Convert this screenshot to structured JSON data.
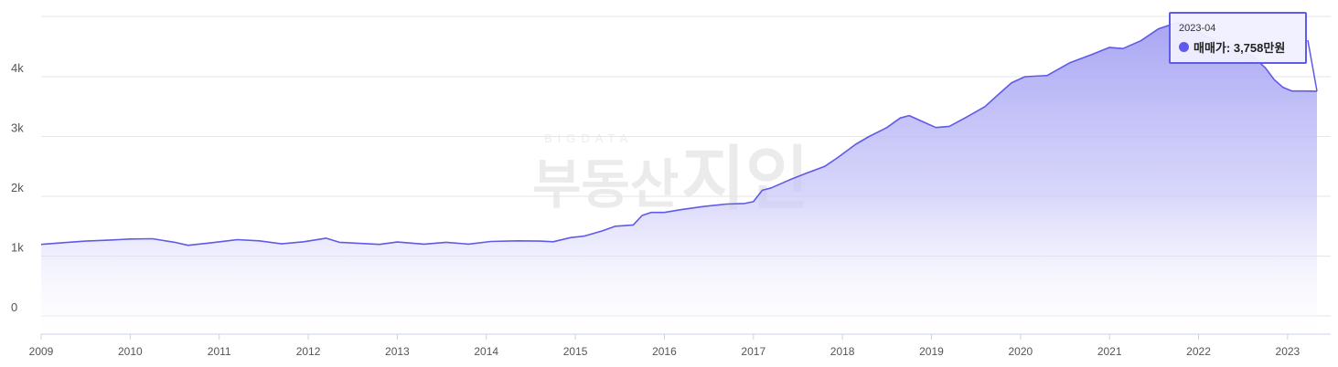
{
  "chart_data": {
    "type": "area",
    "watermark": {
      "top": "BIGDATA",
      "left": "부동산",
      "right": "지인"
    },
    "y_ticks": [
      {
        "value": 0,
        "label": "0"
      },
      {
        "value": 1000,
        "label": "1k"
      },
      {
        "value": 2000,
        "label": "2k"
      },
      {
        "value": 3000,
        "label": "3k"
      },
      {
        "value": 4000,
        "label": "4k"
      }
    ],
    "ylim": [
      -250,
      5000
    ],
    "x_ticks": [
      {
        "value": 2009.0,
        "label": "2009"
      },
      {
        "value": 2010.0,
        "label": "2010"
      },
      {
        "value": 2011.0,
        "label": "2011"
      },
      {
        "value": 2012.0,
        "label": "2012"
      },
      {
        "value": 2013.0,
        "label": "2013"
      },
      {
        "value": 2014.0,
        "label": "2014"
      },
      {
        "value": 2015.0,
        "label": "2015"
      },
      {
        "value": 2016.0,
        "label": "2016"
      },
      {
        "value": 2017.0,
        "label": "2017"
      },
      {
        "value": 2018.0,
        "label": "2018"
      },
      {
        "value": 2019.0,
        "label": "2019"
      },
      {
        "value": 2020.0,
        "label": "2020"
      },
      {
        "value": 2021.0,
        "label": "2021"
      },
      {
        "value": 2022.0,
        "label": "2022"
      },
      {
        "value": 2023.0,
        "label": "2023"
      }
    ],
    "xlim": [
      2009.0,
      2023.33
    ],
    "series": [
      {
        "name": "매매가",
        "color": "#5f5ae8",
        "points": [
          [
            2009.0,
            1195
          ],
          [
            2009.25,
            1225
          ],
          [
            2009.5,
            1250
          ],
          [
            2009.75,
            1265
          ],
          [
            2010.0,
            1285
          ],
          [
            2010.25,
            1290
          ],
          [
            2010.5,
            1230
          ],
          [
            2010.65,
            1180
          ],
          [
            2010.9,
            1220
          ],
          [
            2011.2,
            1275
          ],
          [
            2011.45,
            1255
          ],
          [
            2011.7,
            1205
          ],
          [
            2011.95,
            1240
          ],
          [
            2012.2,
            1300
          ],
          [
            2012.35,
            1230
          ],
          [
            2012.6,
            1210
          ],
          [
            2012.8,
            1195
          ],
          [
            2013.0,
            1235
          ],
          [
            2013.3,
            1200
          ],
          [
            2013.55,
            1230
          ],
          [
            2013.8,
            1200
          ],
          [
            2014.05,
            1245
          ],
          [
            2014.35,
            1255
          ],
          [
            2014.6,
            1250
          ],
          [
            2014.75,
            1240
          ],
          [
            2014.95,
            1310
          ],
          [
            2015.1,
            1335
          ],
          [
            2015.3,
            1420
          ],
          [
            2015.45,
            1500
          ],
          [
            2015.65,
            1520
          ],
          [
            2015.75,
            1680
          ],
          [
            2015.85,
            1730
          ],
          [
            2016.0,
            1730
          ],
          [
            2016.2,
            1780
          ],
          [
            2016.45,
            1830
          ],
          [
            2016.7,
            1870
          ],
          [
            2016.9,
            1880
          ],
          [
            2017.0,
            1910
          ],
          [
            2017.1,
            2100
          ],
          [
            2017.2,
            2140
          ],
          [
            2017.4,
            2270
          ],
          [
            2017.6,
            2390
          ],
          [
            2017.8,
            2500
          ],
          [
            2017.95,
            2650
          ],
          [
            2018.15,
            2870
          ],
          [
            2018.3,
            3000
          ],
          [
            2018.5,
            3150
          ],
          [
            2018.65,
            3310
          ],
          [
            2018.75,
            3350
          ],
          [
            2018.9,
            3250
          ],
          [
            2019.05,
            3150
          ],
          [
            2019.2,
            3170
          ],
          [
            2019.4,
            3330
          ],
          [
            2019.6,
            3500
          ],
          [
            2019.75,
            3700
          ],
          [
            2019.9,
            3900
          ],
          [
            2020.05,
            4000
          ],
          [
            2020.3,
            4020
          ],
          [
            2020.55,
            4230
          ],
          [
            2020.8,
            4370
          ],
          [
            2021.0,
            4490
          ],
          [
            2021.15,
            4470
          ],
          [
            2021.35,
            4600
          ],
          [
            2021.55,
            4800
          ],
          [
            2021.75,
            4900
          ],
          [
            2021.9,
            4880
          ],
          [
            2022.05,
            4700
          ],
          [
            2022.3,
            4530
          ],
          [
            2022.45,
            4430
          ],
          [
            2022.6,
            4350
          ],
          [
            2022.75,
            4150
          ],
          [
            2022.85,
            3950
          ],
          [
            2022.95,
            3820
          ],
          [
            2023.05,
            3760
          ],
          [
            2023.2,
            3760
          ],
          [
            2023.33,
            3758
          ]
        ]
      }
    ],
    "tooltip": {
      "date": "2023-04",
      "series_label": "매매가:",
      "value": "3,758만원"
    }
  }
}
